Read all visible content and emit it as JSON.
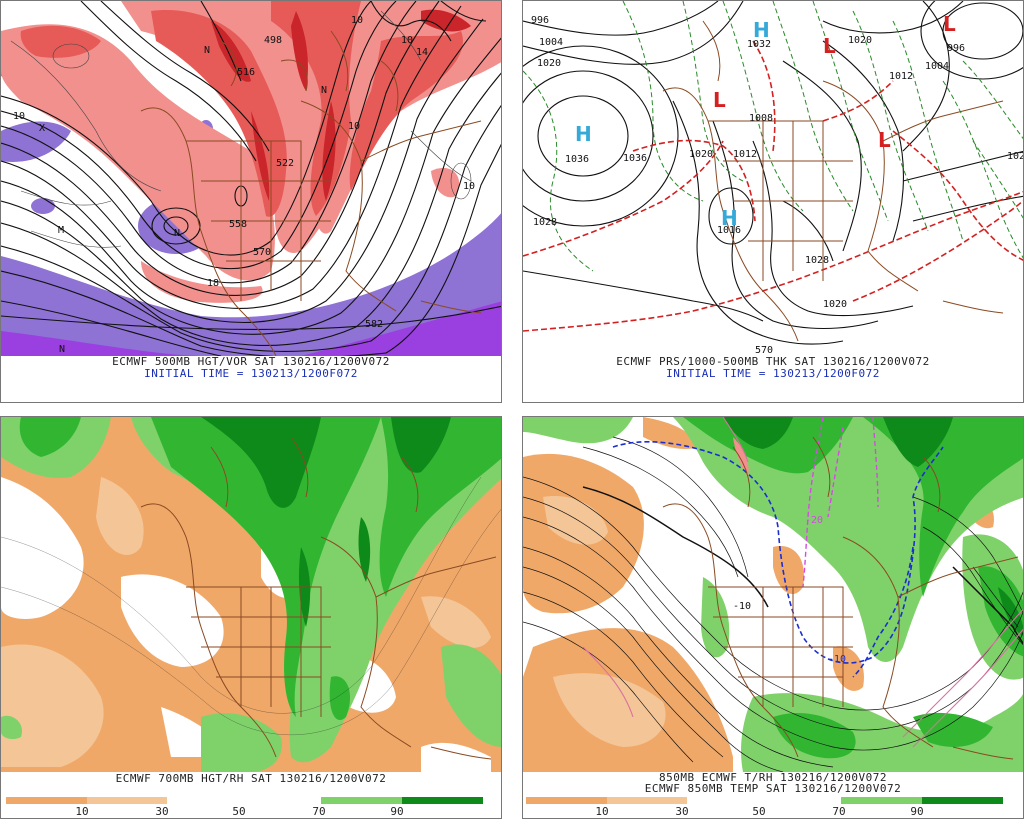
{
  "panels": [
    {
      "caption_line1": "ECMWF 500MB HGT/VOR SAT 130216/1200V072",
      "caption_line2": "INITIAL TIME = 130213/1200F072",
      "labels": [
        "498",
        "516",
        "522",
        "558",
        "570",
        "582",
        "10",
        "10",
        "10",
        "10",
        "10",
        "14",
        "18",
        "N",
        "N",
        "N",
        "N",
        "M",
        "X"
      ]
    },
    {
      "caption_line1": "ECMWF PRS/1000-500MB THK SAT 130216/1200V072",
      "caption_line2": "INITIAL TIME = 130213/1200F072",
      "centers": [
        {
          "type": "H",
          "value": "1036"
        },
        {
          "type": "H",
          "value": "1016"
        },
        {
          "type": "H",
          "value": "1032"
        },
        {
          "type": "L",
          "value": ""
        },
        {
          "type": "L",
          "value": ""
        },
        {
          "type": "L",
          "value": ""
        },
        {
          "type": "L",
          "value": ""
        }
      ],
      "labels": [
        "996",
        "996",
        "1004",
        "1004",
        "1012",
        "1012",
        "1020",
        "1020",
        "1020",
        "1020",
        "1028",
        "1028",
        "1036",
        "570",
        "1008",
        "102"
      ]
    },
    {
      "caption_line1": "ECMWF 700MB HGT/RH SAT 130216/1200V072",
      "caption_line2": ""
    },
    {
      "caption_line1": "850MB ECMWF T/RH 130216/1200V072",
      "caption_line2": "ECMWF 850MB TEMP SAT 130216/1200V072",
      "labels": [
        "-10",
        "-20",
        "-10"
      ]
    }
  ],
  "colorbars": [
    {
      "ticks": [
        "10",
        "30",
        "50",
        "70",
        "90"
      ]
    },
    {
      "ticks": [
        "10",
        "30",
        "50",
        "70",
        "90"
      ]
    }
  ],
  "colors": {
    "vort_light": "#f2908e",
    "vort_mid": "#e65b58",
    "vort_dark": "#c9252a",
    "neg_vort": "#8e72d4",
    "neg_vort_dark": "#9a3fe0",
    "rh_dry1": "#f0a868",
    "rh_dry2": "#f4c596",
    "rh_moist1": "#7fd26a",
    "rh_moist2": "#32b632",
    "rh_moist3": "#0e8a1a",
    "coast": "#8a4a22",
    "thickness": "#d42020",
    "thickness_cold": "#2a8a2a",
    "h_color": "#35a9d8",
    "l_color": "#d42020",
    "zero_isotherm": "#1b2ed0",
    "isotherm_magenta": "#d34be0"
  }
}
